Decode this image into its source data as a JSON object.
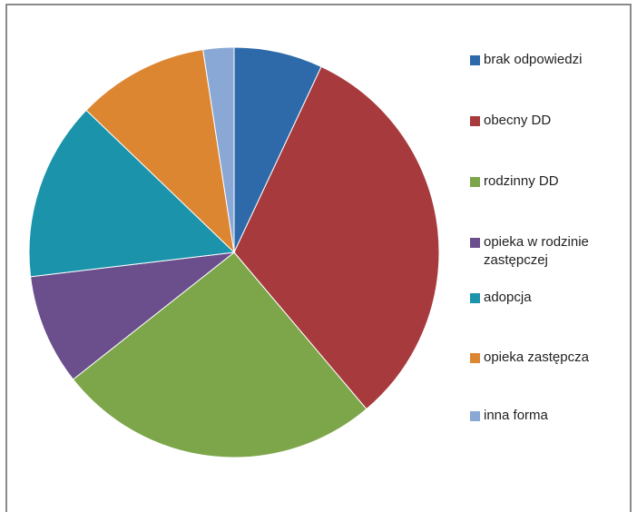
{
  "chart_data": {
    "type": "pie",
    "title": "",
    "start_angle_deg": 0,
    "direction": "clockwise",
    "categories": [
      "brak odpowiedzi",
      "obecny DD",
      "rodzinny DD",
      "opieka w rodzinie zastępczej",
      "adopcja",
      "opieka zastępcza",
      "inna forma"
    ],
    "values": [
      7.2,
      32.8,
      26.3,
      9.0,
      14.5,
      10.7,
      2.5
    ],
    "colors": [
      "#2e6aaa",
      "#a73a3c",
      "#7da64a",
      "#6a4f8c",
      "#1a93ab",
      "#dd8632",
      "#8aa8d6"
    ],
    "legend_position": "right"
  }
}
